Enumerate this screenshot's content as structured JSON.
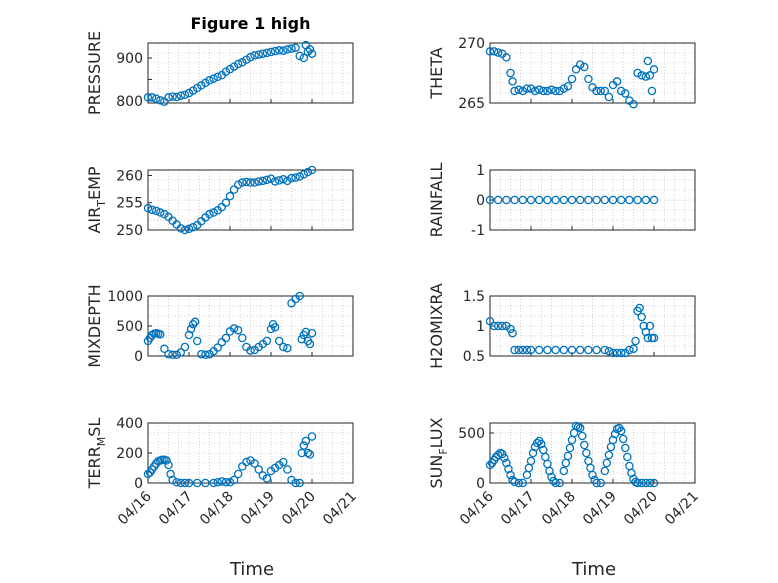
{
  "chart_data": [
    {
      "type": "scatter",
      "title": "Figure 1 high",
      "ylabel": "PRESSURE",
      "ylim": [
        795,
        935
      ],
      "yticks": [
        800,
        850,
        900
      ],
      "ytick_labels": [
        "800",
        "",
        "900"
      ],
      "xlim": [
        0,
        5
      ],
      "x": [
        0.0,
        0.1,
        0.2,
        0.3,
        0.4,
        0.5,
        0.6,
        0.7,
        0.8,
        0.9,
        1.0,
        1.1,
        1.2,
        1.3,
        1.4,
        1.5,
        1.6,
        1.7,
        1.8,
        1.9,
        2.0,
        2.1,
        2.2,
        2.3,
        2.4,
        2.5,
        2.6,
        2.7,
        2.8,
        2.9,
        3.0,
        3.1,
        3.2,
        3.3,
        3.4,
        3.5,
        3.6,
        3.7,
        3.8,
        3.85,
        3.9,
        3.95,
        4.0
      ],
      "y": [
        808,
        808,
        805,
        801,
        798,
        808,
        810,
        809,
        812,
        814,
        818,
        824,
        830,
        836,
        842,
        848,
        852,
        856,
        860,
        868,
        874,
        880,
        886,
        890,
        896,
        902,
        906,
        908,
        910,
        912,
        914,
        916,
        918,
        917,
        920,
        922,
        924,
        905,
        900,
        930,
        915,
        920,
        910
      ]
    },
    {
      "type": "scatter",
      "ylabel": "THETA",
      "ylim": [
        265,
        270
      ],
      "yticks": [
        265,
        270
      ],
      "xlim": [
        0,
        5
      ],
      "x": [
        0.0,
        0.1,
        0.2,
        0.3,
        0.4,
        0.5,
        0.55,
        0.6,
        0.7,
        0.8,
        0.9,
        1.0,
        1.1,
        1.2,
        1.3,
        1.4,
        1.5,
        1.6,
        1.7,
        1.8,
        1.9,
        2.0,
        2.1,
        2.2,
        2.3,
        2.4,
        2.5,
        2.6,
        2.7,
        2.8,
        2.9,
        3.0,
        3.1,
        3.2,
        3.3,
        3.4,
        3.5,
        3.6,
        3.7,
        3.8,
        3.85,
        3.9,
        3.95,
        4.0
      ],
      "y": [
        269.3,
        269.3,
        269.2,
        269.1,
        268.8,
        267.5,
        266.8,
        266.0,
        266.1,
        266.0,
        266.2,
        266.2,
        266.0,
        266.1,
        266.0,
        266.0,
        266.1,
        266.0,
        266.0,
        266.2,
        266.4,
        267.0,
        267.8,
        268.2,
        268.0,
        267.0,
        266.3,
        266.0,
        266.0,
        266.0,
        265.5,
        266.5,
        266.8,
        266.0,
        265.8,
        265.2,
        264.9,
        267.5,
        267.3,
        267.2,
        268.5,
        267.3,
        266.0,
        267.8
      ]
    },
    {
      "type": "scatter",
      "ylabel": "AIR_TEMP",
      "ylim": [
        250,
        261
      ],
      "yticks": [
        250,
        255,
        260
      ],
      "xlim": [
        0,
        5
      ],
      "x": [
        0.0,
        0.1,
        0.2,
        0.3,
        0.4,
        0.5,
        0.6,
        0.7,
        0.8,
        0.9,
        1.0,
        1.1,
        1.2,
        1.3,
        1.4,
        1.5,
        1.6,
        1.7,
        1.8,
        1.9,
        2.0,
        2.1,
        2.2,
        2.3,
        2.4,
        2.5,
        2.6,
        2.7,
        2.8,
        2.9,
        3.0,
        3.1,
        3.2,
        3.3,
        3.4,
        3.5,
        3.6,
        3.7,
        3.8,
        3.9,
        4.0
      ],
      "y": [
        254.0,
        253.7,
        253.5,
        253.2,
        252.9,
        252.4,
        251.7,
        251.0,
        250.3,
        250.0,
        250.2,
        250.5,
        250.9,
        251.6,
        252.3,
        252.9,
        253.2,
        253.6,
        254.2,
        255.0,
        256.2,
        257.4,
        258.3,
        258.7,
        258.8,
        258.7,
        258.7,
        258.9,
        259.0,
        259.2,
        259.4,
        258.9,
        259.1,
        259.3,
        259.0,
        259.5,
        259.6,
        259.8,
        260.2,
        260.6,
        261.0
      ]
    },
    {
      "type": "scatter",
      "ylabel": "RAINFALL",
      "ylim": [
        -1,
        1
      ],
      "yticks": [
        -1,
        0,
        1
      ],
      "xlim": [
        0,
        5
      ],
      "x": [
        0.0,
        0.2,
        0.4,
        0.6,
        0.8,
        1.0,
        1.2,
        1.4,
        1.6,
        1.8,
        2.0,
        2.2,
        2.4,
        2.6,
        2.8,
        3.0,
        3.2,
        3.4,
        3.6,
        3.8,
        4.0
      ],
      "y": [
        0,
        0,
        0,
        0,
        0,
        0,
        0,
        0,
        0,
        0,
        0,
        0,
        0,
        0,
        0,
        0,
        0,
        0,
        0,
        0,
        0
      ]
    },
    {
      "type": "scatter",
      "ylabel": "MIXDEPTH",
      "ylim": [
        0,
        1000
      ],
      "yticks": [
        0,
        500,
        1000
      ],
      "xlim": [
        0,
        5
      ],
      "x": [
        0.0,
        0.05,
        0.1,
        0.15,
        0.2,
        0.25,
        0.3,
        0.4,
        0.5,
        0.6,
        0.7,
        0.8,
        0.9,
        1.0,
        1.05,
        1.1,
        1.15,
        1.2,
        1.3,
        1.4,
        1.5,
        1.6,
        1.7,
        1.8,
        1.9,
        2.0,
        2.1,
        2.2,
        2.3,
        2.4,
        2.5,
        2.6,
        2.7,
        2.8,
        2.9,
        3.0,
        3.05,
        3.1,
        3.2,
        3.3,
        3.4,
        3.5,
        3.6,
        3.7,
        3.75,
        3.8,
        3.85,
        3.9,
        3.95,
        4.0
      ],
      "y": [
        250,
        300,
        350,
        370,
        380,
        370,
        360,
        120,
        30,
        20,
        20,
        60,
        150,
        350,
        450,
        530,
        570,
        250,
        30,
        20,
        30,
        80,
        140,
        230,
        300,
        410,
        460,
        430,
        300,
        150,
        90,
        100,
        150,
        200,
        250,
        450,
        530,
        480,
        250,
        150,
        130,
        880,
        950,
        1000,
        280,
        350,
        400,
        250,
        200,
        380
      ]
    },
    {
      "type": "scatter",
      "ylabel": "H2OMIXRA",
      "ylim": [
        0.5,
        1.5
      ],
      "yticks": [
        0.5,
        1,
        1.5
      ],
      "xlim": [
        0,
        5
      ],
      "x": [
        0.0,
        0.1,
        0.2,
        0.3,
        0.4,
        0.5,
        0.55,
        0.6,
        0.7,
        0.8,
        0.9,
        1.0,
        1.2,
        1.4,
        1.6,
        1.8,
        2.0,
        2.2,
        2.4,
        2.6,
        2.8,
        2.9,
        3.0,
        3.1,
        3.2,
        3.3,
        3.4,
        3.5,
        3.55,
        3.6,
        3.65,
        3.7,
        3.75,
        3.8,
        3.85,
        3.9,
        3.95,
        4.0
      ],
      "y": [
        1.08,
        1.0,
        1.0,
        1.0,
        1.0,
        0.95,
        0.88,
        0.6,
        0.6,
        0.6,
        0.6,
        0.6,
        0.6,
        0.6,
        0.6,
        0.6,
        0.6,
        0.6,
        0.6,
        0.6,
        0.6,
        0.58,
        0.55,
        0.55,
        0.55,
        0.55,
        0.6,
        0.62,
        0.75,
        1.25,
        1.3,
        1.15,
        1.0,
        0.9,
        0.8,
        1.0,
        0.8,
        0.8
      ]
    },
    {
      "type": "scatter",
      "ylabel": "TERR_MSL",
      "ylim": [
        0,
        400
      ],
      "yticks": [
        0,
        200,
        400
      ],
      "xlim": [
        0,
        5
      ],
      "x": [
        0.0,
        0.05,
        0.1,
        0.15,
        0.2,
        0.25,
        0.3,
        0.35,
        0.4,
        0.45,
        0.5,
        0.55,
        0.6,
        0.7,
        0.8,
        0.9,
        1.0,
        1.2,
        1.4,
        1.6,
        1.7,
        1.8,
        1.9,
        2.0,
        2.1,
        2.2,
        2.3,
        2.4,
        2.5,
        2.6,
        2.7,
        2.8,
        2.9,
        3.0,
        3.1,
        3.2,
        3.3,
        3.4,
        3.5,
        3.6,
        3.7,
        3.75,
        3.8,
        3.85,
        3.9,
        3.95,
        4.0
      ],
      "y": [
        60,
        70,
        90,
        110,
        130,
        145,
        150,
        155,
        155,
        150,
        120,
        60,
        20,
        5,
        0,
        0,
        0,
        0,
        0,
        0,
        5,
        10,
        5,
        5,
        20,
        60,
        110,
        140,
        150,
        130,
        90,
        50,
        30,
        80,
        100,
        120,
        140,
        90,
        20,
        0,
        0,
        200,
        250,
        280,
        200,
        190,
        310
      ]
    },
    {
      "type": "scatter",
      "ylabel": "SUN_FLUX",
      "ylim": [
        0,
        600
      ],
      "yticks": [
        0,
        500
      ],
      "xlim": [
        0,
        5
      ],
      "x": [
        0.0,
        0.05,
        0.1,
        0.15,
        0.2,
        0.25,
        0.3,
        0.35,
        0.4,
        0.45,
        0.5,
        0.55,
        0.6,
        0.7,
        0.8,
        0.9,
        0.95,
        1.0,
        1.05,
        1.1,
        1.15,
        1.2,
        1.25,
        1.3,
        1.35,
        1.4,
        1.45,
        1.5,
        1.55,
        1.6,
        1.7,
        1.8,
        1.85,
        1.9,
        1.95,
        2.0,
        2.05,
        2.1,
        2.15,
        2.2,
        2.25,
        2.3,
        2.35,
        2.4,
        2.45,
        2.5,
        2.55,
        2.6,
        2.7,
        2.8,
        2.85,
        2.9,
        2.95,
        3.0,
        3.05,
        3.1,
        3.15,
        3.2,
        3.25,
        3.3,
        3.35,
        3.4,
        3.45,
        3.5,
        3.55,
        3.6,
        3.7,
        3.8,
        3.9,
        4.0
      ],
      "y": [
        180,
        200,
        230,
        260,
        280,
        300,
        290,
        250,
        200,
        140,
        80,
        30,
        10,
        0,
        0,
        80,
        150,
        220,
        300,
        360,
        400,
        420,
        390,
        330,
        260,
        190,
        120,
        60,
        20,
        0,
        0,
        120,
        200,
        270,
        350,
        430,
        500,
        570,
        560,
        550,
        470,
        380,
        300,
        220,
        150,
        80,
        30,
        0,
        0,
        120,
        200,
        280,
        360,
        430,
        490,
        540,
        550,
        520,
        440,
        350,
        260,
        170,
        100,
        40,
        10,
        0,
        0,
        0,
        0,
        0
      ]
    }
  ],
  "x_tick_labels": [
    "04/16",
    "04/17",
    "04/18",
    "04/19",
    "04/20",
    "04/21"
  ],
  "x_axis_label": "Time",
  "colors": {
    "marker": "#0072BD",
    "axis": "#262626",
    "grid": "#c8c8c8"
  }
}
